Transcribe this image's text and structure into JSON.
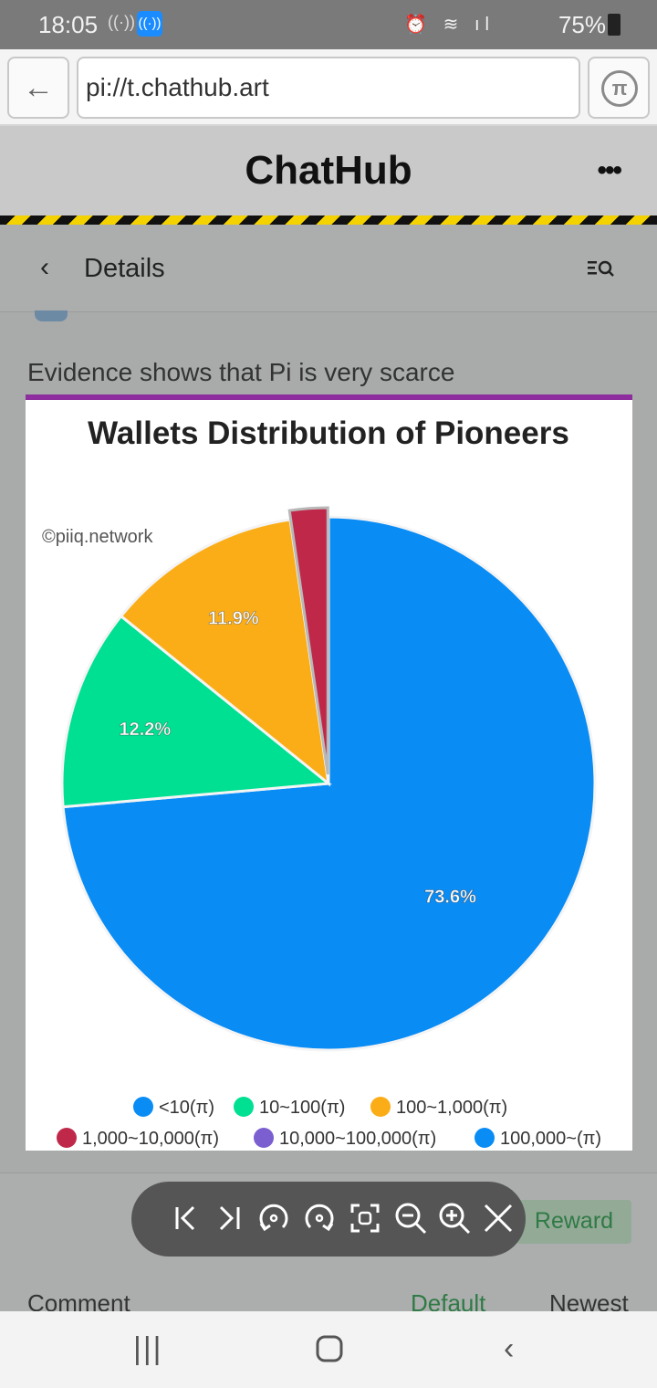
{
  "status_bar": {
    "time": "18:05",
    "battery": "75%"
  },
  "browser": {
    "url": "pi://t.chathub.art",
    "back_icon": "back-arrow-icon",
    "pi_icon": "pi-browser-icon"
  },
  "app": {
    "title": "ChatHub",
    "more_icon": "more-dots-icon"
  },
  "subheader": {
    "title": "Details"
  },
  "post": {
    "text": "Evidence shows that Pi is very scarce",
    "accent_color": "#8e2d9e"
  },
  "chart_data": {
    "type": "pie",
    "title": "Wallets Distribution of Pioneers",
    "watermark": "©piiq.network",
    "slices": [
      {
        "label": "<10(π)",
        "value": 73.6,
        "color": "#0a8cf5",
        "data_label": "73.6%"
      },
      {
        "label": "10~100(π)",
        "value": 12.2,
        "color": "#00e092",
        "data_label": "12.2%"
      },
      {
        "label": "100~1,000(π)",
        "value": 11.9,
        "color": "#fbad17",
        "data_label": "11.9%"
      },
      {
        "label": "1,000~10,000(π)",
        "value": 2.3,
        "color": "#c0284a",
        "data_label": ""
      },
      {
        "label": "10,000~100,000(π)",
        "value": 0,
        "color": "#7b5fd0",
        "data_label": ""
      },
      {
        "label": "100,000~(π)",
        "value": 0,
        "color": "#0a8cf5",
        "data_label": ""
      }
    ],
    "legend_placement": "bottom"
  },
  "actions": {
    "reward_label": "Reward"
  },
  "viewer_toolbar": {
    "icons": [
      "first-page-icon",
      "last-page-icon",
      "rotate-left-icon",
      "rotate-right-icon",
      "fit-screen-icon",
      "zoom-out-icon",
      "zoom-in-icon",
      "close-icon"
    ]
  },
  "comments": {
    "label": "Comment",
    "sort_default": "Default",
    "sort_newest": "Newest"
  },
  "colors": {
    "reward_text": "#2f7a45",
    "toolbar_bg": "#555555"
  }
}
